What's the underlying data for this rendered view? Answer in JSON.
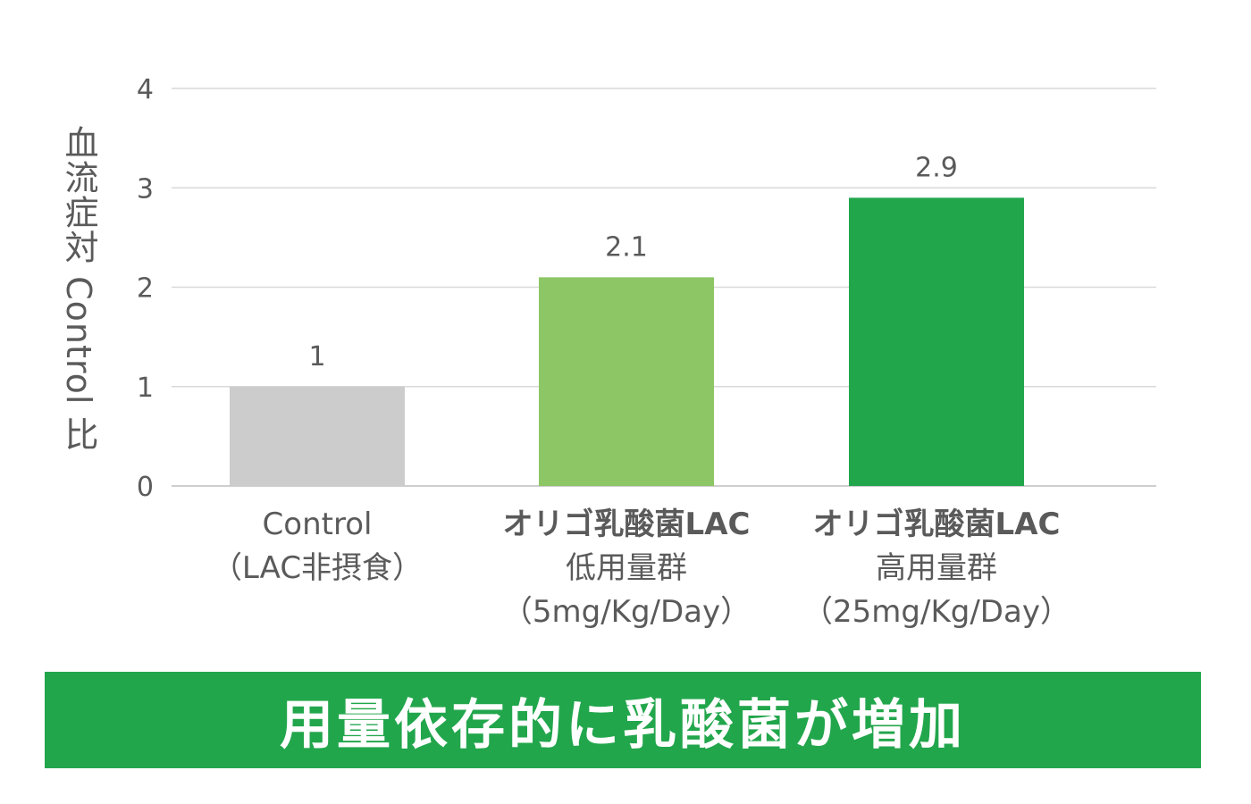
{
  "chart_data": {
    "type": "bar",
    "categories": [
      [
        "Control",
        "（LAC非摂食）"
      ],
      [
        "オリゴ乳酸菌LAC",
        "低用量群",
        "（5mg/Kg/Day）"
      ],
      [
        "オリゴ乳酸菌LAC",
        "高用量群",
        "（25mg/Kg/Day）"
      ]
    ],
    "category_bold_first_line": [
      false,
      true,
      true
    ],
    "values": [
      1,
      2.1,
      2.9
    ],
    "value_labels": [
      "1",
      "2.1",
      "2.9"
    ],
    "colors": [
      "#cccccc",
      "#8cc665",
      "#22a64c"
    ],
    "ylabel": "血流症対 Control 比",
    "ylim": [
      0,
      4
    ],
    "yticks": [
      0,
      1,
      2,
      3,
      4
    ],
    "grid": true,
    "legend": "none"
  },
  "banner": {
    "text": "用量依存的に乳酸菌が増加",
    "color": "#22a64c"
  }
}
